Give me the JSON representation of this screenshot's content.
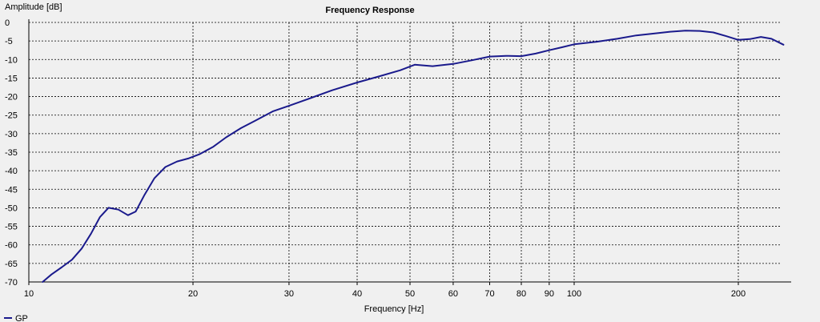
{
  "chart_data": {
    "type": "line",
    "title": "Frequency Response",
    "xlabel": "Frequency [Hz]",
    "ylabel": "Amplitude [dB]",
    "x_scale": "log",
    "xlim": [
      10,
      250
    ],
    "ylim": [
      -70,
      0
    ],
    "grid": true,
    "legend_position": "bottom-left",
    "x_ticks": [
      10,
      20,
      30,
      40,
      50,
      60,
      70,
      80,
      90,
      100,
      200
    ],
    "y_ticks": [
      0,
      -5,
      -10,
      -15,
      -20,
      -25,
      -30,
      -35,
      -40,
      -45,
      -50,
      -55,
      -60,
      -65,
      -70
    ],
    "series": [
      {
        "name": "GP",
        "color": "#1a1a8c",
        "x": [
          10.6,
          11,
          11.5,
          12,
          12.5,
          13,
          13.5,
          14,
          14.6,
          15.2,
          15.7,
          16.3,
          17,
          17.8,
          18.7,
          19.6,
          20.6,
          21.8,
          23,
          24.5,
          26,
          28,
          30,
          33,
          36,
          40,
          44,
          48,
          51,
          55,
          60,
          65,
          70,
          75,
          80,
          85,
          90,
          95,
          100,
          110,
          120,
          130,
          140,
          150,
          160,
          170,
          180,
          190,
          200,
          210,
          220,
          230,
          242
        ],
        "y": [
          -70.2,
          -68,
          -66,
          -64,
          -61,
          -57,
          -52.5,
          -50,
          -50.5,
          -52,
          -51,
          -46.5,
          -42,
          -39,
          -37.5,
          -36.7,
          -35.5,
          -33.5,
          -31,
          -28.5,
          -26.5,
          -24,
          -22.5,
          -20.3,
          -18.3,
          -16.2,
          -14.5,
          -12.9,
          -11.4,
          -11.8,
          -11.2,
          -10.2,
          -9.2,
          -9.0,
          -9.1,
          -8.4,
          -7.5,
          -6.7,
          -5.9,
          -5.2,
          -4.4,
          -3.5,
          -3.0,
          -2.5,
          -2.2,
          -2.3,
          -2.7,
          -3.7,
          -4.7,
          -4.5,
          -3.9,
          -4.4,
          -6.0
        ]
      }
    ]
  }
}
